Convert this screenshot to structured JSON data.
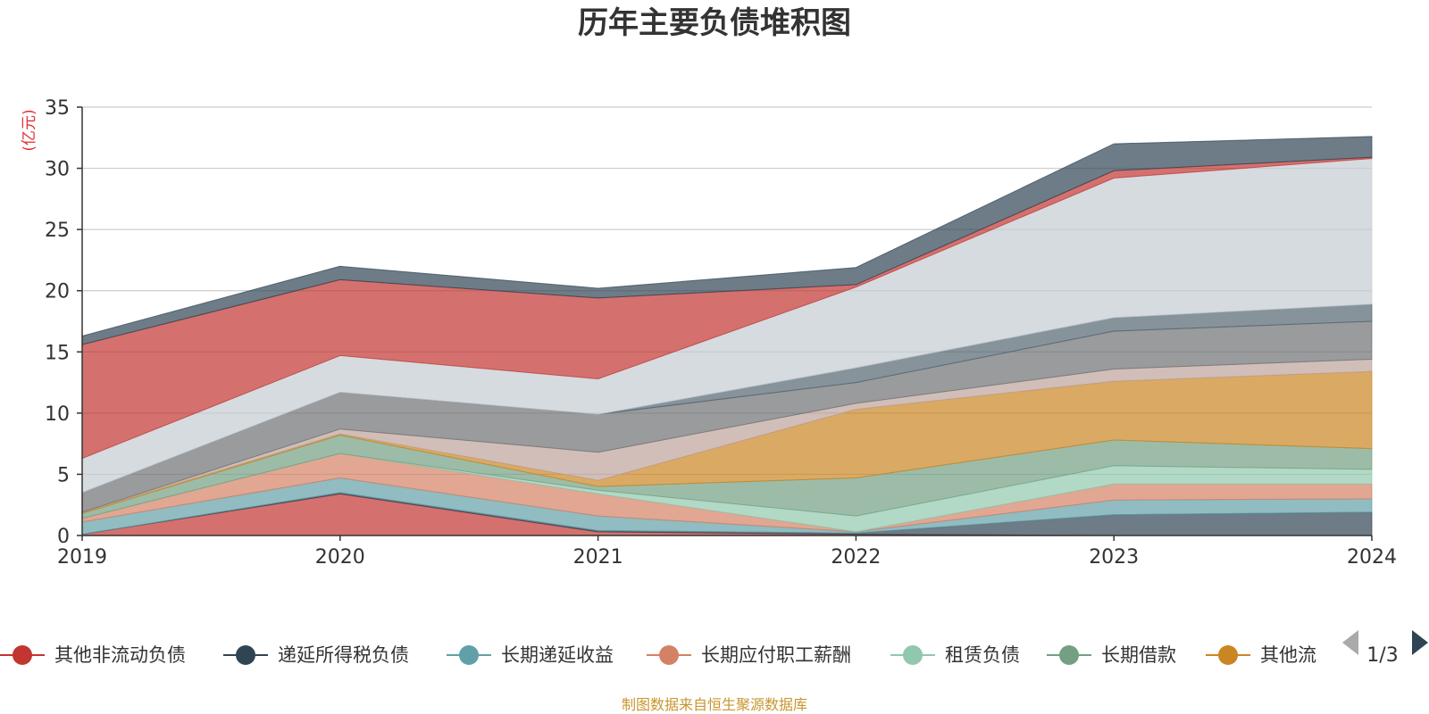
{
  "chart_data": {
    "type": "area",
    "stacked": true,
    "title": "历年主要负债堆积图",
    "unit_label": "(亿元)",
    "x": [
      "2019",
      "2020",
      "2021",
      "2022",
      "2023",
      "2024"
    ],
    "ylim": [
      0,
      35
    ],
    "yticks": [
      0,
      5,
      10,
      15,
      20,
      25,
      30,
      35
    ],
    "grid": true,
    "legend_position": "bottom",
    "legend_page": "1/3",
    "source": "制图数据来自恒生聚源数据库",
    "series": [
      {
        "name": "其他非流动负债",
        "color": "#c23531",
        "legend": true,
        "values": [
          0.1,
          3.4,
          0.3,
          0.1,
          0.0,
          0.0
        ]
      },
      {
        "name": "递延所得税负债",
        "color": "#2f4554",
        "legend": true,
        "values": [
          0.0,
          0.1,
          0.1,
          0.1,
          1.7,
          1.9
        ]
      },
      {
        "name": "长期递延收益",
        "color": "#61a0a8",
        "legend": true,
        "values": [
          1.0,
          1.2,
          1.2,
          0.1,
          1.2,
          1.1
        ]
      },
      {
        "name": "长期应付职工薪酬",
        "color": "#d48265",
        "legend": true,
        "values": [
          0.3,
          2.0,
          1.8,
          0.0,
          1.3,
          1.2
        ]
      },
      {
        "name": "租赁负债",
        "color": "#91c7ae",
        "legend": true,
        "values": [
          0.0,
          0.0,
          0.3,
          1.3,
          1.5,
          1.2
        ]
      },
      {
        "name": "长期借款",
        "color": "#749f83",
        "legend": true,
        "values": [
          0.4,
          1.5,
          0.3,
          3.1,
          2.1,
          1.7
        ]
      },
      {
        "name": "其他流",
        "color": "#ca8622",
        "legend": true,
        "values": [
          0.1,
          0.1,
          0.5,
          5.6,
          4.8,
          6.3
        ]
      },
      {
        "name": "",
        "color": "#bda29a",
        "legend": false,
        "values": [
          0.0,
          0.4,
          2.3,
          0.5,
          1.0,
          1.0
        ]
      },
      {
        "name": "",
        "color": "#6e7074",
        "legend": false,
        "values": [
          1.6,
          3.0,
          3.1,
          1.7,
          3.1,
          3.1
        ]
      },
      {
        "name": "",
        "color": "#546570",
        "legend": false,
        "values": [
          0.0,
          0.0,
          0.0,
          1.2,
          1.1,
          1.4
        ]
      },
      {
        "name": "",
        "color": "#c4ccd3",
        "legend": false,
        "values": [
          2.8,
          3.0,
          2.9,
          6.6,
          11.4,
          11.9
        ]
      },
      {
        "name": "",
        "color": "#c23531",
        "legend": false,
        "values": [
          9.3,
          6.2,
          6.6,
          0.2,
          0.6,
          0.1
        ]
      },
      {
        "name": "",
        "color": "#2f4554",
        "legend": false,
        "values": [
          0.7,
          1.1,
          0.8,
          1.4,
          2.2,
          1.7
        ]
      }
    ]
  }
}
